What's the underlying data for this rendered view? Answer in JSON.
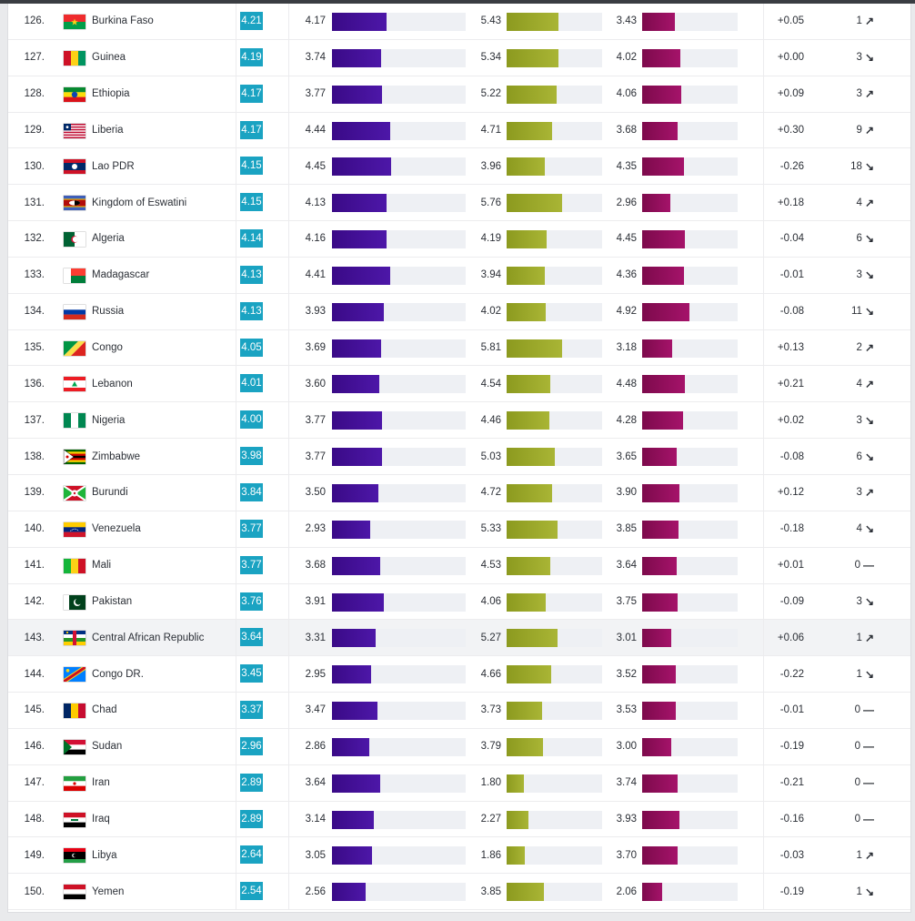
{
  "rows": [
    {
      "rank": "126.",
      "country": "Burkina Faso",
      "flag": "burkina-faso",
      "score": "4.21",
      "v1": "4.17",
      "v2": "5.43",
      "v3": "3.43",
      "change": "+0.05",
      "move": "1",
      "dir": "up"
    },
    {
      "rank": "127.",
      "country": "Guinea",
      "flag": "guinea",
      "score": "4.19",
      "v1": "3.74",
      "v2": "5.34",
      "v3": "4.02",
      "change": "+0.00",
      "move": "3",
      "dir": "down"
    },
    {
      "rank": "128.",
      "country": "Ethiopia",
      "flag": "ethiopia",
      "score": "4.17",
      "v1": "3.77",
      "v2": "5.22",
      "v3": "4.06",
      "change": "+0.09",
      "move": "3",
      "dir": "up"
    },
    {
      "rank": "129.",
      "country": "Liberia",
      "flag": "liberia",
      "score": "4.17",
      "v1": "4.44",
      "v2": "4.71",
      "v3": "3.68",
      "change": "+0.30",
      "move": "9",
      "dir": "up"
    },
    {
      "rank": "130.",
      "country": "Lao PDR",
      "flag": "laos",
      "score": "4.15",
      "v1": "4.45",
      "v2": "3.96",
      "v3": "4.35",
      "change": "-0.26",
      "move": "18",
      "dir": "down"
    },
    {
      "rank": "131.",
      "country": "Kingdom of Eswatini",
      "flag": "eswatini",
      "score": "4.15",
      "v1": "4.13",
      "v2": "5.76",
      "v3": "2.96",
      "change": "+0.18",
      "move": "4",
      "dir": "up"
    },
    {
      "rank": "132.",
      "country": "Algeria",
      "flag": "algeria",
      "score": "4.14",
      "v1": "4.16",
      "v2": "4.19",
      "v3": "4.45",
      "change": "-0.04",
      "move": "6",
      "dir": "down"
    },
    {
      "rank": "133.",
      "country": "Madagascar",
      "flag": "madagascar",
      "score": "4.13",
      "v1": "4.41",
      "v2": "3.94",
      "v3": "4.36",
      "change": "-0.01",
      "move": "3",
      "dir": "down"
    },
    {
      "rank": "134.",
      "country": "Russia",
      "flag": "russia",
      "score": "4.13",
      "v1": "3.93",
      "v2": "4.02",
      "v3": "4.92",
      "change": "-0.08",
      "move": "11",
      "dir": "down"
    },
    {
      "rank": "135.",
      "country": "Congo",
      "flag": "congo",
      "score": "4.05",
      "v1": "3.69",
      "v2": "5.81",
      "v3": "3.18",
      "change": "+0.13",
      "move": "2",
      "dir": "up"
    },
    {
      "rank": "136.",
      "country": "Lebanon",
      "flag": "lebanon",
      "score": "4.01",
      "v1": "3.60",
      "v2": "4.54",
      "v3": "4.48",
      "change": "+0.21",
      "move": "4",
      "dir": "up"
    },
    {
      "rank": "137.",
      "country": "Nigeria",
      "flag": "nigeria",
      "score": "4.00",
      "v1": "3.77",
      "v2": "4.46",
      "v3": "4.28",
      "change": "+0.02",
      "move": "3",
      "dir": "down"
    },
    {
      "rank": "138.",
      "country": "Zimbabwe",
      "flag": "zimbabwe",
      "score": "3.98",
      "v1": "3.77",
      "v2": "5.03",
      "v3": "3.65",
      "change": "-0.08",
      "move": "6",
      "dir": "down"
    },
    {
      "rank": "139.",
      "country": "Burundi",
      "flag": "burundi",
      "score": "3.84",
      "v1": "3.50",
      "v2": "4.72",
      "v3": "3.90",
      "change": "+0.12",
      "move": "3",
      "dir": "up"
    },
    {
      "rank": "140.",
      "country": "Venezuela",
      "flag": "venezuela",
      "score": "3.77",
      "v1": "2.93",
      "v2": "5.33",
      "v3": "3.85",
      "change": "-0.18",
      "move": "4",
      "dir": "down"
    },
    {
      "rank": "141.",
      "country": "Mali",
      "flag": "mali",
      "score": "3.77",
      "v1": "3.68",
      "v2": "4.53",
      "v3": "3.64",
      "change": "+0.01",
      "move": "0",
      "dir": "none"
    },
    {
      "rank": "142.",
      "country": "Pakistan",
      "flag": "pakistan",
      "score": "3.76",
      "v1": "3.91",
      "v2": "4.06",
      "v3": "3.75",
      "change": "-0.09",
      "move": "3",
      "dir": "down"
    },
    {
      "rank": "143.",
      "country": "Central African Republic",
      "flag": "car",
      "score": "3.64",
      "v1": "3.31",
      "v2": "5.27",
      "v3": "3.01",
      "change": "+0.06",
      "move": "1",
      "dir": "up",
      "highlight": true
    },
    {
      "rank": "144.",
      "country": "Congo DR.",
      "flag": "drc",
      "score": "3.45",
      "v1": "2.95",
      "v2": "4.66",
      "v3": "3.52",
      "change": "-0.22",
      "move": "1",
      "dir": "down"
    },
    {
      "rank": "145.",
      "country": "Chad",
      "flag": "chad",
      "score": "3.37",
      "v1": "3.47",
      "v2": "3.73",
      "v3": "3.53",
      "change": "-0.01",
      "move": "0",
      "dir": "none"
    },
    {
      "rank": "146.",
      "country": "Sudan",
      "flag": "sudan",
      "score": "2.96",
      "v1": "2.86",
      "v2": "3.79",
      "v3": "3.00",
      "change": "-0.19",
      "move": "0",
      "dir": "none"
    },
    {
      "rank": "147.",
      "country": "Iran",
      "flag": "iran",
      "score": "2.89",
      "v1": "3.64",
      "v2": "1.80",
      "v3": "3.74",
      "change": "-0.21",
      "move": "0",
      "dir": "none"
    },
    {
      "rank": "148.",
      "country": "Iraq",
      "flag": "iraq",
      "score": "2.89",
      "v1": "3.14",
      "v2": "2.27",
      "v3": "3.93",
      "change": "-0.16",
      "move": "0",
      "dir": "none"
    },
    {
      "rank": "149.",
      "country": "Libya",
      "flag": "libya",
      "score": "2.64",
      "v1": "3.05",
      "v2": "1.86",
      "v3": "3.70",
      "change": "-0.03",
      "move": "1",
      "dir": "up"
    },
    {
      "rank": "150.",
      "country": "Yemen",
      "flag": "yemen",
      "score": "2.54",
      "v1": "2.56",
      "v2": "3.85",
      "v3": "2.06",
      "change": "-0.19",
      "move": "1",
      "dir": "down"
    }
  ],
  "colors": {
    "score_badge": "#1aa3c2",
    "bar1": "#4211a0",
    "bar2": "#9faa2c",
    "bar3": "#9a1062",
    "track": "#eef0f4"
  },
  "icons": {
    "up": "arrow-up-right-icon",
    "down": "arrow-down-right-icon",
    "none": "dash-icon"
  }
}
